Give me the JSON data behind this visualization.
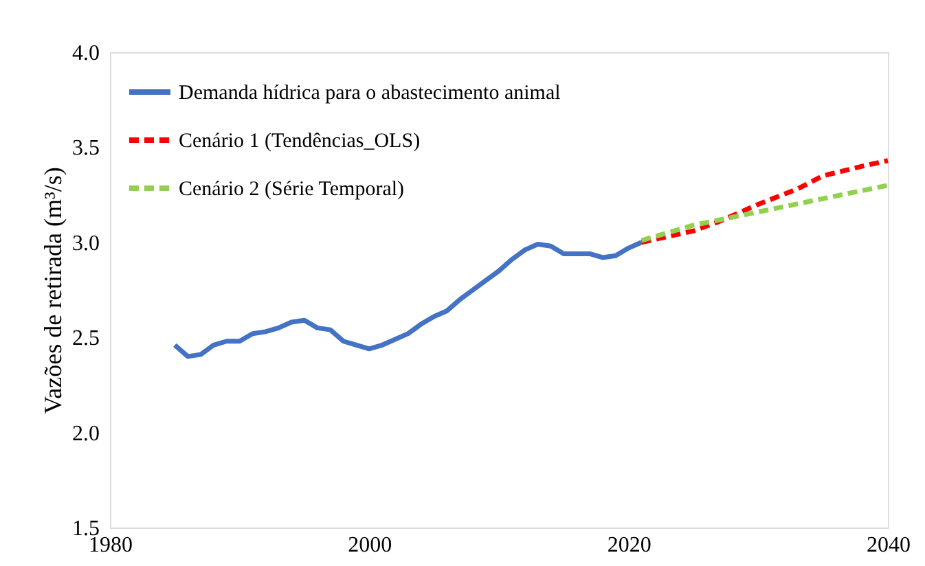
{
  "chart_data": {
    "type": "line",
    "ylabel": "Vazões de retirada (m³/s)",
    "xlim": [
      1980,
      2040
    ],
    "xticks": [
      1980,
      2000,
      2020,
      2040
    ],
    "ylim": [
      1.5,
      4.0
    ],
    "yticks": [
      1.5,
      {
        "value": 2,
        "label": "2.0"
      },
      2.5,
      {
        "value": 3,
        "label": "3.0"
      },
      3.5,
      {
        "value": 4,
        "label": "4.0"
      }
    ],
    "grid": false,
    "legend": "top left",
    "marker": "none",
    "series": [
      {
        "name": "Demanda hídrica para o abastecimento animal",
        "color": "#4472c4",
        "line_style": "solid",
        "x": [
          1985,
          1986,
          1987,
          1988,
          1989,
          1990,
          1991,
          1992,
          1993,
          1994,
          1995,
          1996,
          1997,
          1998,
          1999,
          2000,
          2001,
          2002,
          2003,
          2004,
          2005,
          2006,
          2007,
          2008,
          2009,
          2010,
          2011,
          2012,
          2013,
          2014,
          2015,
          2016,
          2017,
          2018,
          2019,
          2020,
          2021
        ],
        "values": [
          2.46,
          2.4,
          2.41,
          2.46,
          2.48,
          2.48,
          2.52,
          2.53,
          2.55,
          2.58,
          2.59,
          2.55,
          2.54,
          2.48,
          2.46,
          2.44,
          2.46,
          2.49,
          2.52,
          2.57,
          2.61,
          2.64,
          2.7,
          2.75,
          2.8,
          2.85,
          2.91,
          2.96,
          2.99,
          2.98,
          2.94,
          2.94,
          2.94,
          2.92,
          2.93,
          2.97,
          3.0
        ]
      },
      {
        "name": "Cenário 1 (Tendências_OLS)",
        "color": "#ff0000",
        "line_style": "dashed",
        "x": [
          2021,
          2025,
          2027,
          2030,
          2033,
          2035,
          2038,
          2040
        ],
        "values": [
          3.0,
          3.06,
          3.11,
          3.2,
          3.28,
          3.35,
          3.4,
          3.43
        ]
      },
      {
        "name": "Cenário 2 (Série Temporal)",
        "color": "#92d050",
        "line_style": "dashed",
        "x": [
          2021,
          2025,
          2030,
          2035,
          2040
        ],
        "values": [
          3.01,
          3.09,
          3.16,
          3.23,
          3.3
        ]
      }
    ]
  }
}
